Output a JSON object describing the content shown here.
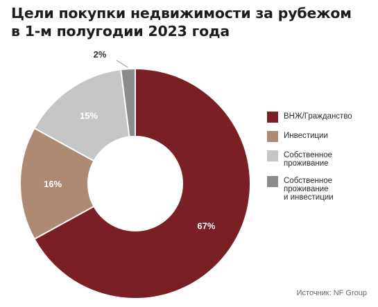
{
  "title_line1": "Цели покупки недвижимости за рубежом",
  "title_line2": "в 1-м полугодии 2023 года",
  "source": "Источник: NF Group",
  "chart_data": {
    "type": "pie",
    "variant": "donut",
    "categories": [
      "ВНЖ/Гражданство",
      "Инвестиции",
      "Собственное\nпроживание",
      "Собственное\nпроживание\nи инвестиции"
    ],
    "values": [
      67,
      16,
      15,
      2
    ],
    "labels": [
      "67%",
      "16%",
      "15%",
      "2%"
    ],
    "colors": [
      "#7a1f24",
      "#ae8a73",
      "#c6c6c6",
      "#8c8c8c"
    ],
    "label_colors": [
      "#ffffff",
      "#ffffff",
      "#ffffff",
      "#333333"
    ],
    "legend_position": "right"
  }
}
